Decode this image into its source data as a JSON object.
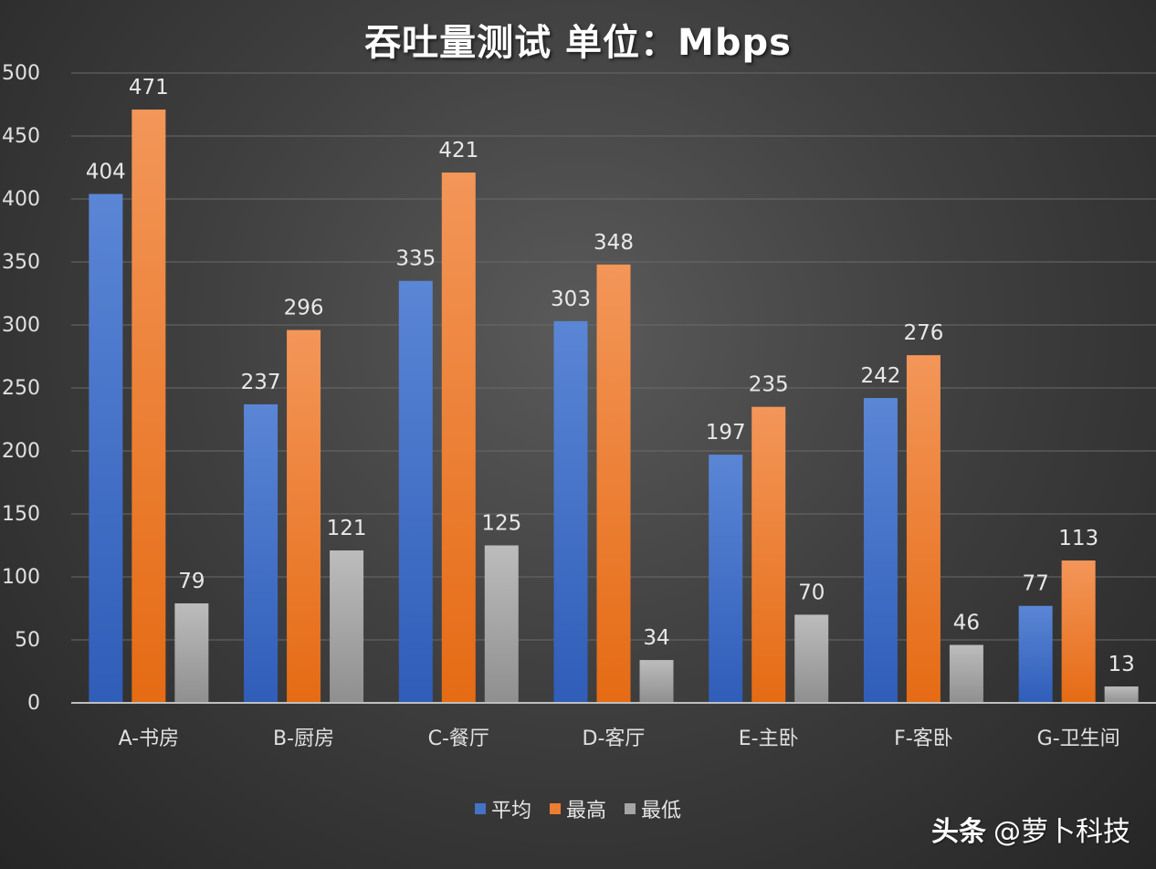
{
  "chart_data": {
    "type": "bar",
    "title": "吞吐量测试  单位：Mbps",
    "categories": [
      "A-书房",
      "B-厨房",
      "C-餐厅",
      "D-客厅",
      "E-主卧",
      "F-客卧",
      "G-卫生间"
    ],
    "series": [
      {
        "name": "平均",
        "values": [
          404,
          237,
          335,
          303,
          197,
          242,
          77
        ],
        "color": "#4472c4"
      },
      {
        "name": "最高",
        "values": [
          471,
          296,
          421,
          348,
          235,
          276,
          113
        ],
        "color": "#ed7d31"
      },
      {
        "name": "最低",
        "values": [
          79,
          121,
          125,
          34,
          70,
          46,
          13
        ],
        "color": "#a5a5a5"
      }
    ],
    "ylim": [
      0,
      500
    ],
    "yticks": [
      0,
      50,
      100,
      150,
      200,
      250,
      300,
      350,
      400,
      450,
      500
    ],
    "grid": true,
    "legend_position": "bottom"
  },
  "watermark": {
    "brand": "头条",
    "handle": "@萝卜科技"
  }
}
